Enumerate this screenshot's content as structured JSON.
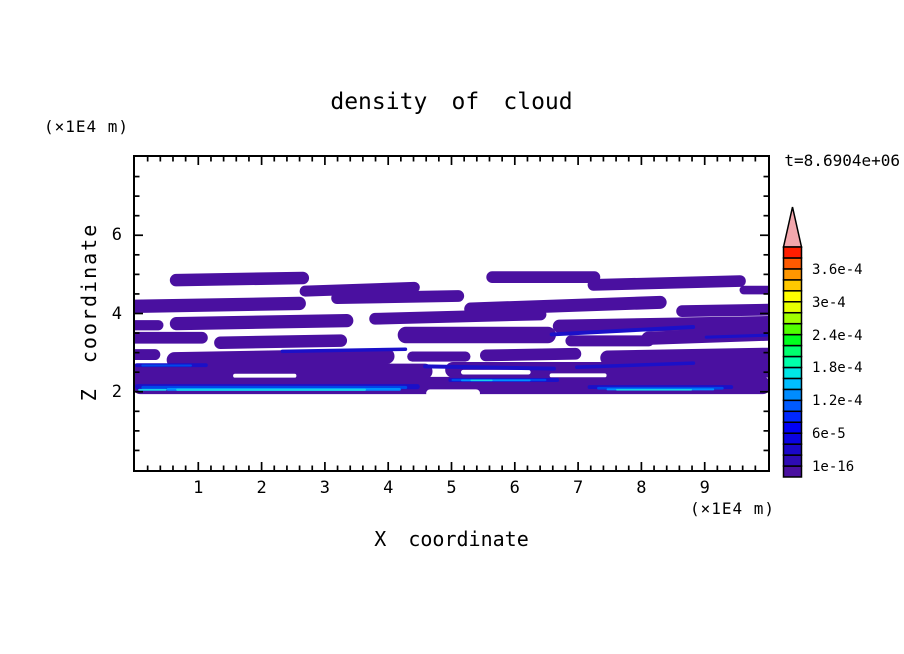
{
  "title": "density of cloud",
  "time_label": "t=8.6904e+06",
  "left_unit_label": "(×1E4 m)",
  "x_axis": {
    "label": "X coordinate",
    "unit_label": "(×1E4 m)",
    "min": 0,
    "max": 10,
    "major_ticks": [
      1,
      2,
      3,
      4,
      5,
      6,
      7,
      8,
      9
    ],
    "minor_step": 0.2
  },
  "z_axis": {
    "label": "Z coordinate",
    "min": 0,
    "max": 8,
    "major_ticks": [
      2,
      4,
      6
    ],
    "minor_step": 0.5
  },
  "colorbar": {
    "overflow_arrow_color": "#f3a7ad",
    "outline_color": "#000000",
    "segment_colors_bottom_to_top": [
      "#4a10a0",
      "#2e0bb4",
      "#1a07c8",
      "#0a03e1",
      "#0000f5",
      "#0028ff",
      "#005aff",
      "#008cff",
      "#00beff",
      "#00e6e6",
      "#00ffaa",
      "#00ff6e",
      "#00ff1e",
      "#50ff00",
      "#a0ff00",
      "#e6ff00",
      "#ffff00",
      "#ffc800",
      "#ff9600",
      "#ff5a00",
      "#ff1e00"
    ],
    "labels": [
      {
        "text": "3.6e-4",
        "boundary_index": 19
      },
      {
        "text": "3e-4",
        "boundary_index": 16
      },
      {
        "text": "2.4e-4",
        "boundary_index": 13
      },
      {
        "text": "1.8e-4",
        "boundary_index": 10
      },
      {
        "text": "1.2e-4",
        "boundary_index": 7
      },
      {
        "text": "6e-5",
        "boundary_index": 4
      },
      {
        "text": "1e-16",
        "boundary_index": 1
      }
    ]
  },
  "chart_data": {
    "type": "filled_contour",
    "title": "density of cloud",
    "xlabel": "X coordinate",
    "ylabel": "Z coordinate",
    "x_unit": "×1E4 m",
    "z_unit": "×1E4 m",
    "time": "8.6904e+06",
    "x_range": [
      0,
      10
    ],
    "z_range": [
      0,
      8
    ],
    "contour_min": "1e-16",
    "contour_step": "2e-5",
    "contour_max": "4e-4",
    "summary": "Horizontally streaked cloud-density layer between z≈1.9 and z≈5.1; lowest density (1e-16 to 2e-5, purple) dominates, with thin higher-density blue/cyan filaments near z≈2.0-2.7",
    "level_colors": {
      "l1": "#4a10a0",
      "l2": "#1b10c8",
      "l3": "#0048e8",
      "l4": "#0090ff",
      "l5": "#18d2e8",
      "gap": "#ffffff"
    },
    "shape_format": [
      "x_start",
      "z_center",
      "x_length",
      "z_thickness",
      "tilt_deg"
    ],
    "region_groups": [
      {
        "level": "l1",
        "shapes": [
          [
            -0.05,
            2.16,
            10.1,
            0.44,
            0
          ],
          [
            -0.1,
            2.52,
            4.8,
            0.4,
            0
          ],
          [
            4.9,
            2.56,
            5.2,
            0.4,
            0
          ],
          [
            -0.1,
            2.95,
            0.5,
            0.28,
            0
          ],
          [
            0.5,
            2.86,
            3.6,
            0.4,
            -1
          ],
          [
            4.3,
            2.9,
            1.0,
            0.26,
            0
          ],
          [
            5.45,
            2.95,
            1.6,
            0.3,
            -1
          ],
          [
            7.35,
            2.9,
            2.75,
            0.38,
            -1
          ],
          [
            -0.1,
            3.38,
            1.25,
            0.3,
            0
          ],
          [
            1.25,
            3.28,
            2.1,
            0.32,
            -1
          ],
          [
            4.15,
            3.45,
            2.5,
            0.42,
            0
          ],
          [
            6.8,
            3.3,
            1.4,
            0.28,
            0
          ],
          [
            8.0,
            3.42,
            2.1,
            0.34,
            -2
          ],
          [
            -0.1,
            3.7,
            0.55,
            0.26,
            0
          ],
          [
            0.55,
            3.78,
            2.9,
            0.34,
            -1
          ],
          [
            3.7,
            3.92,
            2.8,
            0.3,
            -1.5
          ],
          [
            6.6,
            3.72,
            3.5,
            0.34,
            -1
          ],
          [
            -0.1,
            4.22,
            2.8,
            0.34,
            -1
          ],
          [
            3.1,
            4.42,
            2.1,
            0.3,
            -1
          ],
          [
            5.2,
            4.2,
            3.2,
            0.33,
            -2
          ],
          [
            8.55,
            4.08,
            1.6,
            0.3,
            -1
          ],
          [
            0.55,
            4.88,
            2.2,
            0.32,
            -1
          ],
          [
            2.6,
            4.62,
            1.9,
            0.28,
            -2
          ],
          [
            5.55,
            4.93,
            1.8,
            0.3,
            0
          ],
          [
            7.15,
            4.78,
            2.5,
            0.3,
            -1.5
          ],
          [
            9.55,
            4.6,
            0.55,
            0.22,
            0
          ]
        ]
      },
      {
        "level": "gap",
        "shapes": [
          [
            4.6,
            1.96,
            0.85,
            0.2,
            0
          ],
          [
            1.55,
            2.41,
            1.0,
            0.1,
            0
          ],
          [
            6.55,
            2.42,
            0.9,
            0.1,
            0
          ],
          [
            5.15,
            2.5,
            1.1,
            0.12,
            0
          ]
        ]
      },
      {
        "level": "l2",
        "shapes": [
          [
            0.0,
            2.68,
            1.15,
            0.1,
            0
          ],
          [
            2.3,
            3.06,
            2.0,
            0.09,
            -1
          ],
          [
            6.55,
            3.56,
            2.3,
            0.1,
            -3
          ],
          [
            9.0,
            3.42,
            1.0,
            0.08,
            -2
          ],
          [
            4.55,
            2.62,
            2.1,
            0.1,
            1
          ],
          [
            6.95,
            2.68,
            1.9,
            0.09,
            -2
          ],
          [
            0.0,
            2.13,
            4.5,
            0.13,
            0
          ],
          [
            4.95,
            2.3,
            1.75,
            0.1,
            0
          ],
          [
            7.15,
            2.12,
            2.3,
            0.1,
            0
          ]
        ]
      },
      {
        "level": "l3",
        "shapes": [
          [
            0.1,
            2.11,
            4.2,
            0.08,
            0
          ],
          [
            5.0,
            2.3,
            1.5,
            0.06,
            0
          ],
          [
            7.3,
            2.09,
            2.0,
            0.07,
            0
          ],
          [
            0.1,
            2.67,
            0.8,
            0.05,
            0
          ]
        ]
      },
      {
        "level": "l4",
        "shapes": [
          [
            0.5,
            2.06,
            3.7,
            0.07,
            0
          ],
          [
            5.15,
            2.29,
            1.1,
            0.045,
            0
          ],
          [
            7.45,
            2.06,
            1.7,
            0.05,
            0
          ]
        ]
      },
      {
        "level": "l5",
        "shapes": [
          [
            0.05,
            2.05,
            0.45,
            0.05,
            0
          ],
          [
            0.65,
            2.05,
            3.0,
            0.055,
            0
          ],
          [
            5.3,
            2.29,
            0.35,
            0.04,
            0
          ],
          [
            7.6,
            2.05,
            1.2,
            0.04,
            0
          ]
        ]
      }
    ]
  }
}
